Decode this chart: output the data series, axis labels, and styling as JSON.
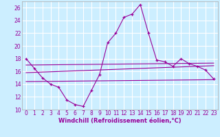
{
  "background_color": "#cceeff",
  "grid_color": "#ffffff",
  "line_color": "#990099",
  "xlabel": "Windchill (Refroidissement éolien,°C)",
  "xlim": [
    -0.5,
    23.5
  ],
  "ylim": [
    10,
    27
  ],
  "yticks": [
    10,
    12,
    14,
    16,
    18,
    20,
    22,
    24,
    26
  ],
  "xticks": [
    0,
    1,
    2,
    3,
    4,
    5,
    6,
    7,
    8,
    9,
    10,
    11,
    12,
    13,
    14,
    15,
    16,
    17,
    18,
    19,
    20,
    21,
    22,
    23
  ],
  "series_main": {
    "x": [
      0,
      1,
      2,
      3,
      4,
      5,
      6,
      7,
      8,
      9,
      10,
      11,
      12,
      13,
      14,
      15,
      16,
      17,
      18,
      19,
      20,
      21,
      22,
      23
    ],
    "y": [
      18.0,
      16.5,
      15.0,
      14.0,
      13.5,
      11.5,
      10.8,
      10.5,
      13.0,
      15.5,
      20.5,
      22.0,
      24.5,
      25.0,
      26.5,
      22.0,
      17.8,
      17.5,
      16.8,
      18.0,
      17.2,
      16.8,
      16.2,
      14.8
    ]
  },
  "series_ref": [
    {
      "x": [
        0,
        23
      ],
      "y": [
        17.0,
        17.3
      ]
    },
    {
      "x": [
        0,
        23
      ],
      "y": [
        15.8,
        16.9
      ]
    },
    {
      "x": [
        0,
        23
      ],
      "y": [
        14.4,
        14.7
      ]
    }
  ]
}
